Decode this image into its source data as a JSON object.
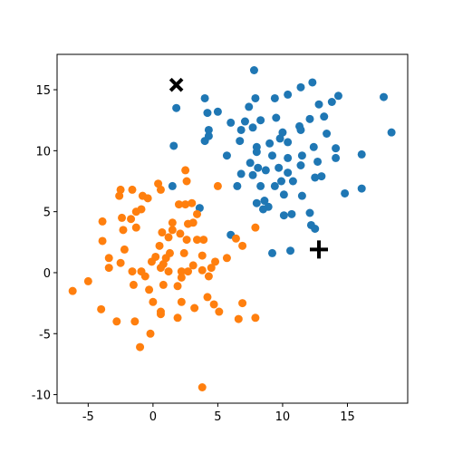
{
  "chart_data": {
    "type": "scatter",
    "xlim": [
      -7.4,
      19.65
    ],
    "ylim": [
      -10.7,
      17.9
    ],
    "xticks": [
      -5,
      0,
      5,
      10,
      15
    ],
    "yticks": [
      -10,
      -5,
      0,
      5,
      10,
      15
    ],
    "series": [
      {
        "color": "#1f77b4",
        "marker": "o",
        "x": [
          7.8,
          11.4,
          12.3,
          9.4,
          10.4,
          4.0,
          7.9,
          14.3,
          17.8,
          18.4,
          1.8,
          4.2,
          5.0,
          7.4,
          12.8,
          13.8,
          13.2,
          12.1,
          9.5,
          8.3,
          7.1,
          6.0,
          6.8,
          7.7,
          4.3,
          4.3,
          4.0,
          1.6,
          10.0,
          11.3,
          11.4,
          9.8,
          10.4,
          9.0,
          8.0,
          12.4,
          14.1,
          13.4,
          6.7,
          5.7,
          8.0,
          9.2,
          10.4,
          11.5,
          12.7,
          14.1,
          16.1,
          11.4,
          7.5,
          8.1,
          9.7,
          6.8,
          7.7,
          8.7,
          10.4,
          12.5,
          13.0,
          10.8,
          9.9,
          9.4,
          8.3,
          6.5,
          1.5,
          16.1,
          14.8,
          11.5,
          10.1,
          8.0,
          8.6,
          8.9,
          12.1,
          10.1,
          10.7,
          12.2,
          12.5,
          3.6,
          6.0,
          9.2,
          10.6,
          8.5
        ],
        "values": [
          16.6,
          15.2,
          15.6,
          14.3,
          14.6,
          14.3,
          14.3,
          14.5,
          14.4,
          11.5,
          13.5,
          13.1,
          13.2,
          13.6,
          13.8,
          14.0,
          12.8,
          12.6,
          12.7,
          12.5,
          12.4,
          12.3,
          11.7,
          11.9,
          11.7,
          11.2,
          10.8,
          10.4,
          11.5,
          12.0,
          11.7,
          11.0,
          10.7,
          10.6,
          10.3,
          10.3,
          10.2,
          11.4,
          10.8,
          9.6,
          9.9,
          9.6,
          9.4,
          9.6,
          9.1,
          9.4,
          9.7,
          8.8,
          9.0,
          8.6,
          8.6,
          8.1,
          8.0,
          8.4,
          8.2,
          7.8,
          7.9,
          7.5,
          7.5,
          7.1,
          7.1,
          7.1,
          7.1,
          6.9,
          6.5,
          6.3,
          6.4,
          5.7,
          5.9,
          5.4,
          4.9,
          4.7,
          4.8,
          3.9,
          3.6,
          5.3,
          3.1,
          1.6,
          1.8,
          5.2
        ]
      },
      {
        "color": "#ff7f0e",
        "marker": "o",
        "x": [
          5.0,
          2.5,
          0.4,
          0.6,
          2.6,
          -2.5,
          -1.6,
          -2.6,
          -0.8,
          -0.4,
          2.5,
          3.0,
          2.0,
          -0.9,
          -1.3,
          -2.4,
          -1.7,
          -3.9,
          3.4,
          3.1,
          2.7,
          1.5,
          1.5,
          -1.3,
          -2.3,
          0.7,
          1.2,
          2.1,
          2.6,
          3.9,
          3.4,
          6.4,
          6.9,
          -3.9,
          -2.2,
          0.5,
          1.3,
          0.2,
          -0.1,
          1.0,
          2.4,
          3.8,
          5.7,
          -3.4,
          -2.5,
          -3.4,
          0.8,
          1.2,
          2.2,
          2.7,
          2.2,
          3.1,
          4.8,
          -1.6,
          -0.6,
          -0.9,
          0.6,
          -5.0,
          -6.2,
          -1.5,
          -0.3,
          0.8,
          1.9,
          4.3,
          4.5,
          3.8,
          2.2,
          0.0,
          4.2,
          4.7,
          3.2,
          6.9,
          5.1,
          0.6,
          0.6,
          -4.0,
          6.6,
          7.9,
          1.9,
          -2.8,
          -1.4,
          -0.2,
          -1.0,
          3.8,
          7.9
        ],
        "values": [
          7.1,
          8.4,
          7.3,
          6.8,
          7.5,
          6.8,
          6.8,
          6.3,
          6.3,
          6.1,
          5.6,
          5.7,
          5.6,
          5.2,
          5.0,
          4.5,
          4.4,
          4.2,
          4.8,
          4.1,
          4.0,
          4.1,
          3.5,
          3.7,
          3.5,
          3.3,
          2.9,
          3.2,
          2.7,
          2.7,
          2.7,
          2.8,
          2.2,
          2.6,
          1.9,
          2.2,
          1.6,
          1.3,
          0.9,
          1.2,
          1.6,
          1.4,
          1.2,
          1.2,
          0.8,
          0.4,
          0.7,
          0.1,
          0.1,
          0.1,
          -0.4,
          0.6,
          0.9,
          0.1,
          -0.3,
          0.1,
          0.4,
          -0.7,
          -1.5,
          -1.0,
          -1.4,
          -1.0,
          -1.1,
          -0.3,
          0.4,
          0.2,
          -2.4,
          -2.4,
          -2.0,
          -2.6,
          -2.9,
          -2.5,
          -3.2,
          -3.2,
          -3.4,
          -3.0,
          -3.8,
          -3.7,
          -3.7,
          -4.0,
          -4.0,
          -5.0,
          -6.1,
          -9.4,
          3.7
        ]
      },
      {
        "color": "#000000",
        "marker": "x",
        "x": [
          1.8
        ],
        "values": [
          15.4
        ]
      },
      {
        "color": "#000000",
        "marker": "+",
        "x": [
          12.8
        ],
        "values": [
          1.9
        ]
      }
    ]
  }
}
